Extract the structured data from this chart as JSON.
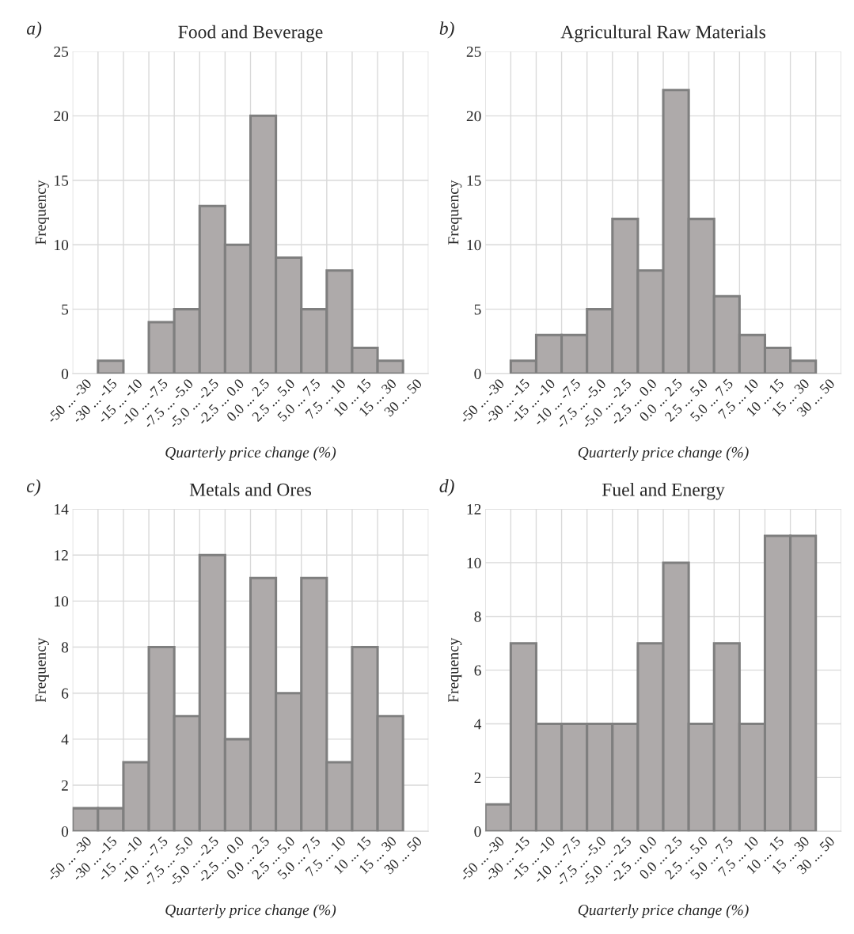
{
  "chart_data": [
    {
      "type": "bar",
      "title": "Food and Beverage",
      "annotations": [
        "a)"
      ],
      "xlabel": "Quarterly price change (%)",
      "ylabel": "Frequency",
      "categories": [
        "-50 ... -30",
        "-30 ... -15",
        "-15 ... -10",
        "-10 ... -7.5",
        "-7.5 ... -5.0",
        "-5.0 ... -2.5",
        "-2.5 ... 0.0",
        "0.0 ... 2.5",
        "2.5 ... 5.0",
        "5.0 ... 7.5",
        "7.5 ... 10",
        "10 ... 15",
        "15 ... 30",
        "30 ... 50"
      ],
      "values": [
        0,
        1,
        0,
        4,
        5,
        13,
        10,
        20,
        9,
        5,
        8,
        2,
        1,
        0
      ],
      "color": "#aeaaaa",
      "ylim": [
        0,
        25
      ],
      "yticks": [
        0,
        5,
        10,
        15,
        20,
        25
      ],
      "grid": true
    },
    {
      "type": "bar",
      "title": "Agricultural Raw Materials",
      "annotations": [
        "b)"
      ],
      "xlabel": "Quarterly price change (%)",
      "ylabel": "Frequency",
      "categories": [
        "-50 ... -30",
        "-30 ... -15",
        "-15 ... -10",
        "-10 ... -7.5",
        "-7.5 ... -5.0",
        "-5.0 ... -2.5",
        "-2.5 ... 0.0",
        "0.0 ... 2.5",
        "2.5 ... 5.0",
        "5.0 ... 7.5",
        "7.5 ... 10",
        "10 ... 15",
        "15 ... 30",
        "30 ... 50"
      ],
      "values": [
        0,
        1,
        3,
        3,
        5,
        12,
        8,
        22,
        12,
        6,
        3,
        2,
        1,
        0
      ],
      "color": "#aeaaaa",
      "ylim": [
        0,
        25
      ],
      "yticks": [
        0,
        5,
        10,
        15,
        20,
        25
      ],
      "grid": true
    },
    {
      "type": "bar",
      "title": "Metals and Ores",
      "annotations": [
        "c)"
      ],
      "xlabel": "Quarterly price change (%)",
      "ylabel": "Frequency",
      "categories": [
        "-50 ... -30",
        "-30 ... -15",
        "-15 ... -10",
        "-10 ... -7.5",
        "-7.5 ... -5.0",
        "-5.0 ... -2.5",
        "-2.5 ... 0.0",
        "0.0 ... 2.5",
        "2.5 ... 5.0",
        "5.0 ... 7.5",
        "7.5 ... 10",
        "10 ... 15",
        "15 ... 30",
        "30 ... 50"
      ],
      "values": [
        1,
        1,
        3,
        8,
        5,
        12,
        4,
        11,
        6,
        11,
        3,
        8,
        5,
        0
      ],
      "color": "#aeaaaa",
      "ylim": [
        0,
        14
      ],
      "yticks": [
        0,
        2,
        4,
        6,
        8,
        10,
        12,
        14
      ],
      "grid": true
    },
    {
      "type": "bar",
      "title": "Fuel and Energy",
      "annotations": [
        "d)"
      ],
      "xlabel": "Quarterly price change (%)",
      "ylabel": "Frequency",
      "categories": [
        "-50 ... -30",
        "-30 ... -15",
        "-15 ... -10",
        "-10 ... -7.5",
        "-7.5 ... -5.0",
        "-5.0 ... -2.5",
        "-2.5 ... 0.0",
        "0.0 ... 2.5",
        "2.5 ... 5.0",
        "5.0 ... 7.5",
        "7.5 ... 10",
        "10 ... 15",
        "15 ... 30",
        "30 ... 50"
      ],
      "values": [
        1,
        7,
        4,
        4,
        4,
        4,
        7,
        10,
        4,
        7,
        4,
        11,
        11,
        0
      ],
      "color": "#aeaaaa",
      "ylim": [
        0,
        12
      ],
      "yticks": [
        0,
        2,
        4,
        6,
        8,
        10,
        12
      ],
      "grid": true
    }
  ]
}
